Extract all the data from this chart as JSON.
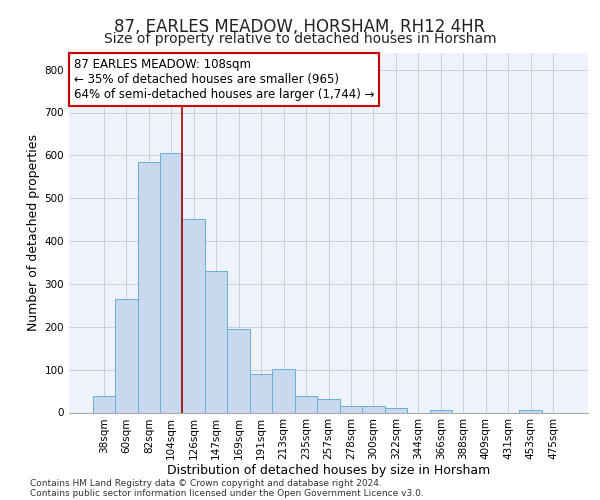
{
  "title": "87, EARLES MEADOW, HORSHAM, RH12 4HR",
  "subtitle": "Size of property relative to detached houses in Horsham",
  "xlabel": "Distribution of detached houses by size in Horsham",
  "ylabel": "Number of detached properties",
  "bar_labels": [
    "38sqm",
    "60sqm",
    "82sqm",
    "104sqm",
    "126sqm",
    "147sqm",
    "169sqm",
    "191sqm",
    "213sqm",
    "235sqm",
    "257sqm",
    "278sqm",
    "300sqm",
    "322sqm",
    "344sqm",
    "366sqm",
    "388sqm",
    "409sqm",
    "431sqm",
    "453sqm",
    "475sqm"
  ],
  "bar_heights": [
    38,
    265,
    585,
    605,
    452,
    330,
    196,
    90,
    101,
    38,
    32,
    15,
    15,
    10,
    0,
    7,
    0,
    0,
    0,
    7,
    0
  ],
  "bar_color": "#c8d8ee",
  "bar_edge_color": "#6baed6",
  "vline_color": "#aa0000",
  "vline_x_idx": 3,
  "annotation_line1": "87 EARLES MEADOW: 108sqm",
  "annotation_line2": "← 35% of detached houses are smaller (965)",
  "annotation_line3": "64% of semi-detached houses are larger (1,744) →",
  "annotation_box_color": "#cc0000",
  "ylim": [
    0,
    840
  ],
  "yticks": [
    0,
    100,
    200,
    300,
    400,
    500,
    600,
    700,
    800
  ],
  "grid_color": "#c8d0e0",
  "bg_color": "#eef2fa",
  "footer_line1": "Contains HM Land Registry data © Crown copyright and database right 2024.",
  "footer_line2": "Contains public sector information licensed under the Open Government Licence v3.0.",
  "title_fontsize": 12,
  "subtitle_fontsize": 10,
  "xlabel_fontsize": 9,
  "ylabel_fontsize": 9,
  "tick_fontsize": 7.5,
  "annotation_fontsize": 8.5,
  "footer_fontsize": 6.5
}
